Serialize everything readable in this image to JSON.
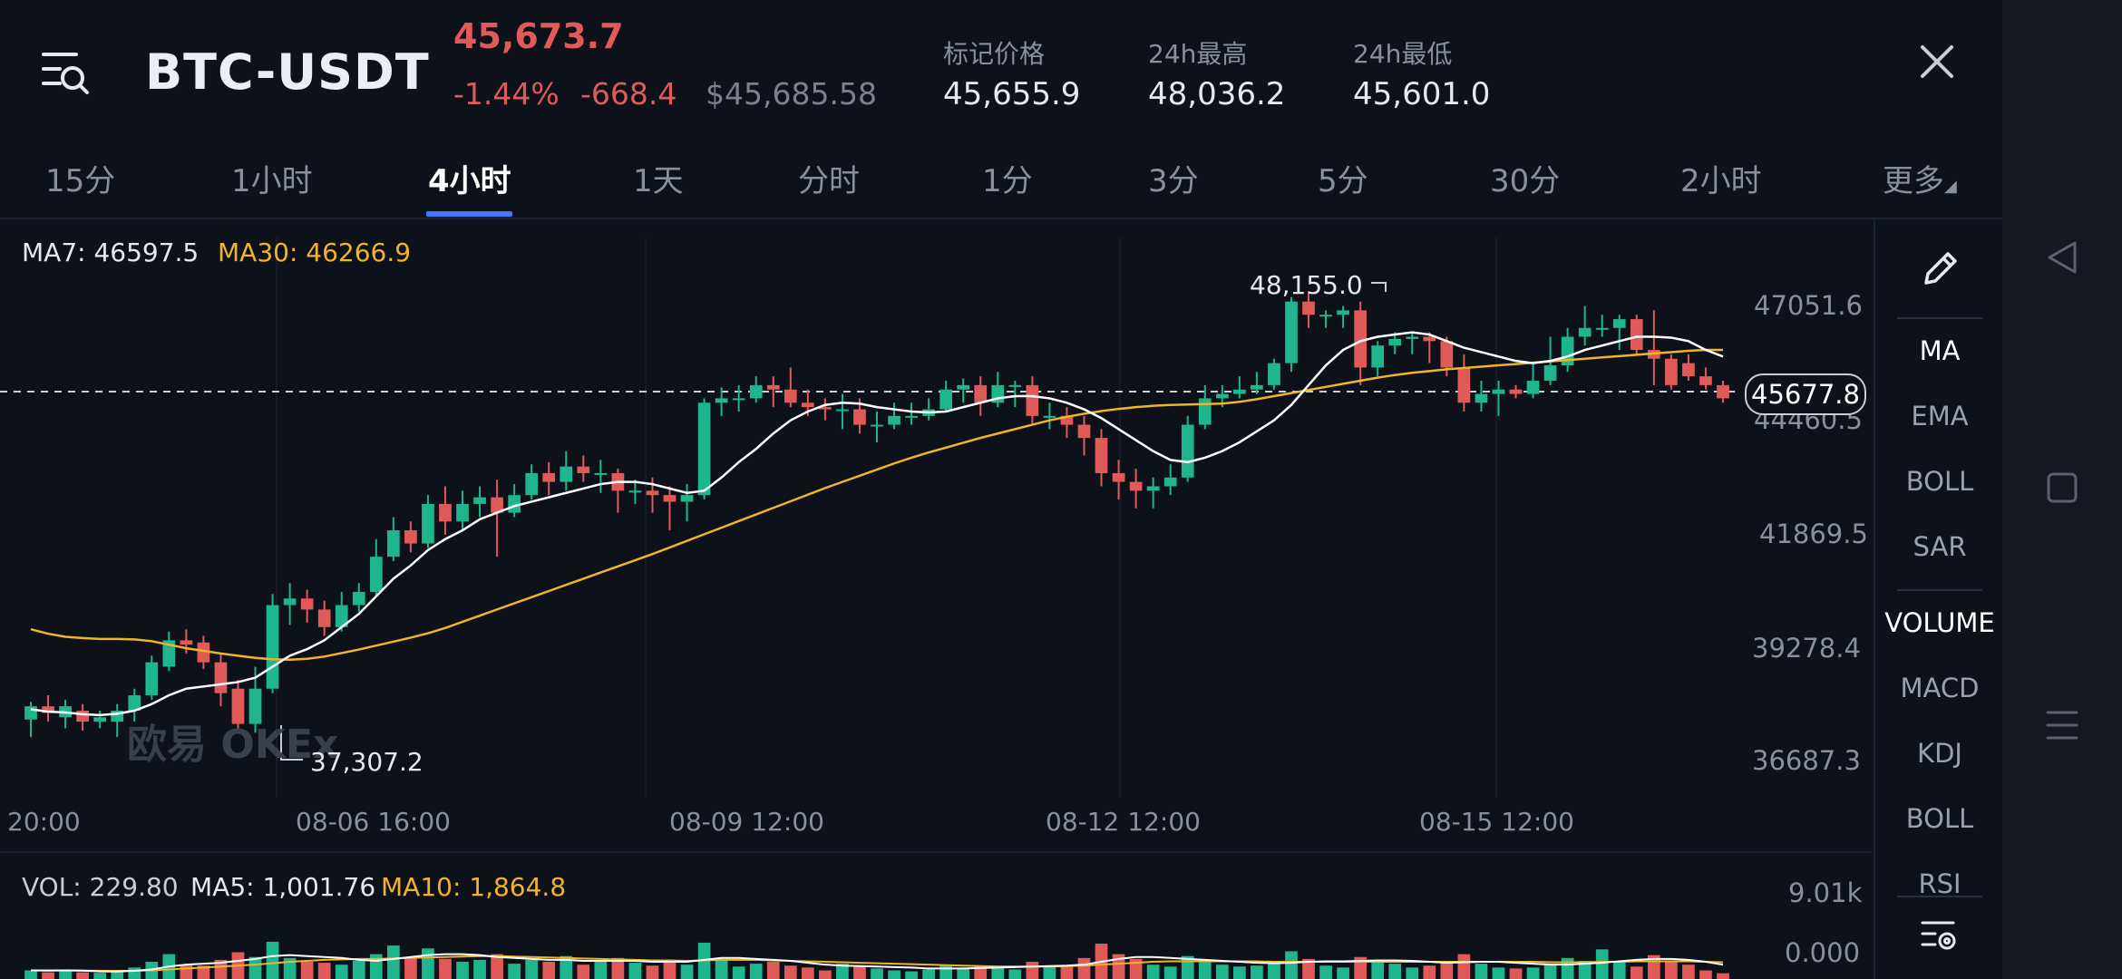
{
  "header": {
    "pair": "BTC-USDT",
    "last_price": "45,673.7",
    "change_pct": "-1.44%",
    "change_abs": "-668.4",
    "usd_price": "$45,685.58",
    "stats": [
      {
        "label": "标记价格",
        "value": "45,655.9"
      },
      {
        "label": "24h最高",
        "value": "48,036.2"
      },
      {
        "label": "24h最低",
        "value": "45,601.0"
      }
    ]
  },
  "tabs": [
    "15分",
    "1小时",
    "4小时",
    "1天",
    "分时",
    "1分",
    "3分",
    "5分",
    "30分",
    "2小时",
    "更多"
  ],
  "active_tab": "4小时",
  "legend": {
    "ma7_label": "MA7: 46597.5",
    "ma30_label": "MA30: 46266.9",
    "vol_label": "VOL: 229.80",
    "vol_ma5_label": "MA5: 1,001.76",
    "vol_ma10_label": "MA10: 1,864.8"
  },
  "annotations": {
    "high": "48,155.0",
    "low": "37,307.2",
    "current": "45677.8"
  },
  "watermark": "欧易 OKEx",
  "side_tools": [
    "MA",
    "EMA",
    "BOLL",
    "SAR",
    "VOLUME",
    "MACD",
    "KDJ",
    "BOLL",
    "RSI"
  ],
  "colors": {
    "up": "#1fb58f",
    "down": "#e05a5a",
    "ma7": "#ffffff",
    "ma30": "#f0b429",
    "accent": "#3d7bff"
  },
  "chart_data": {
    "type": "candlestick",
    "y_ticks": [
      "47051.6",
      "44460.5",
      "41869.5",
      "39278.4",
      "36687.3"
    ],
    "x_ticks": [
      "20:00",
      "08-06 16:00",
      "08-09 12:00",
      "08-12 12:00",
      "08-15 12:00"
    ],
    "vol_y_ticks": [
      "9.01k",
      "0.000"
    ],
    "candles": [
      [
        37600,
        37900,
        37200,
        38000
      ],
      [
        37900,
        37750,
        37550,
        38150
      ],
      [
        37650,
        37900,
        37400,
        38050
      ],
      [
        37800,
        37550,
        37350,
        37950
      ],
      [
        37550,
        37650,
        37400,
        37800
      ],
      [
        37550,
        37800,
        37200,
        37950
      ],
      [
        37800,
        38150,
        37550,
        38300
      ],
      [
        38150,
        38900,
        38050,
        39050
      ],
      [
        38800,
        39400,
        38700,
        39600
      ],
      [
        39400,
        39300,
        39100,
        39650
      ],
      [
        39350,
        38900,
        38750,
        39500
      ],
      [
        38900,
        38200,
        37900,
        39100
      ],
      [
        38300,
        37500,
        37300,
        38500
      ],
      [
        37500,
        38300,
        37300,
        38800
      ],
      [
        38300,
        40200,
        38200,
        40450
      ],
      [
        40200,
        40350,
        39750,
        40700
      ],
      [
        40350,
        40100,
        39800,
        40550
      ],
      [
        40100,
        39700,
        39500,
        40300
      ],
      [
        39700,
        40200,
        39600,
        40500
      ],
      [
        40200,
        40500,
        40050,
        40700
      ],
      [
        40500,
        41300,
        40400,
        41700
      ],
      [
        41300,
        41900,
        41200,
        42200
      ],
      [
        41900,
        41600,
        41400,
        42100
      ],
      [
        41600,
        42500,
        41500,
        42700
      ],
      [
        42500,
        42100,
        41800,
        42900
      ],
      [
        42100,
        42500,
        41900,
        42800
      ],
      [
        42500,
        42650,
        42200,
        42900
      ],
      [
        42650,
        42300,
        41300,
        43050
      ],
      [
        42300,
        42700,
        42200,
        42950
      ],
      [
        42700,
        43200,
        42600,
        43400
      ],
      [
        43200,
        43000,
        42700,
        43450
      ],
      [
        43000,
        43350,
        42800,
        43700
      ],
      [
        43350,
        43200,
        43000,
        43600
      ],
      [
        43200,
        43200,
        42750,
        43500
      ],
      [
        43200,
        42800,
        42300,
        43300
      ],
      [
        42800,
        42800,
        42500,
        43050
      ],
      [
        42800,
        42700,
        42300,
        43100
      ],
      [
        42700,
        42550,
        41900,
        42900
      ],
      [
        42550,
        42700,
        42100,
        42950
      ],
      [
        42700,
        44800,
        42600,
        44900
      ],
      [
        44800,
        44900,
        44500,
        45150
      ],
      [
        44900,
        44900,
        44600,
        45200
      ],
      [
        44900,
        45200,
        44800,
        45400
      ],
      [
        45200,
        45100,
        44700,
        45400
      ],
      [
        45100,
        44800,
        44700,
        45600
      ],
      [
        44800,
        44700,
        44500,
        45100
      ],
      [
        44700,
        44650,
        44400,
        44900
      ],
      [
        44650,
        44650,
        44200,
        45000
      ],
      [
        44650,
        44300,
        44100,
        44900
      ],
      [
        44300,
        44300,
        43900,
        44600
      ],
      [
        44300,
        44500,
        44200,
        44800
      ],
      [
        44500,
        44500,
        44300,
        44800
      ],
      [
        44500,
        44650,
        44400,
        44900
      ],
      [
        44650,
        45100,
        44600,
        45300
      ],
      [
        45100,
        45200,
        44800,
        45350
      ],
      [
        45200,
        44800,
        44500,
        45400
      ],
      [
        44800,
        45200,
        44700,
        45500
      ],
      [
        45200,
        45200,
        44700,
        45300
      ],
      [
        45200,
        44500,
        44300,
        45400
      ],
      [
        44500,
        44500,
        44200,
        44800
      ],
      [
        44500,
        44300,
        44000,
        44700
      ],
      [
        44300,
        44000,
        43600,
        44500
      ],
      [
        44000,
        43200,
        42900,
        44200
      ],
      [
        43200,
        43000,
        42600,
        43500
      ],
      [
        43000,
        42800,
        42400,
        43300
      ],
      [
        42800,
        42900,
        42400,
        43100
      ],
      [
        42900,
        43100,
        42700,
        43400
      ],
      [
        43100,
        44300,
        43000,
        44500
      ],
      [
        44300,
        44900,
        44200,
        45200
      ],
      [
        44900,
        45000,
        44700,
        45200
      ],
      [
        45000,
        45100,
        44900,
        45400
      ],
      [
        45100,
        45200,
        45000,
        45500
      ],
      [
        45200,
        45700,
        45100,
        45800
      ],
      [
        45700,
        47100,
        45500,
        47200
      ],
      [
        47100,
        46800,
        46500,
        47300
      ],
      [
        46800,
        46800,
        46500,
        46900
      ],
      [
        46800,
        46900,
        46500,
        47000
      ],
      [
        46900,
        45600,
        45200,
        47100
      ],
      [
        45600,
        46100,
        45400,
        46200
      ],
      [
        46100,
        46250,
        45900,
        46400
      ],
      [
        46250,
        46300,
        45900,
        46400
      ],
      [
        46300,
        46200,
        45700,
        46400
      ],
      [
        46200,
        45600,
        45400,
        46300
      ],
      [
        45600,
        44800,
        44600,
        45900
      ],
      [
        44800,
        45000,
        44600,
        45300
      ],
      [
        45000,
        45100,
        44500,
        45300
      ],
      [
        45100,
        45000,
        44900,
        45200
      ],
      [
        45000,
        45300,
        44900,
        45700
      ],
      [
        45300,
        45650,
        45200,
        46300
      ],
      [
        45650,
        46300,
        45500,
        46500
      ],
      [
        46300,
        46500,
        46100,
        47000
      ],
      [
        46500,
        46500,
        46300,
        46800
      ],
      [
        46500,
        46700,
        46000,
        46800
      ],
      [
        46700,
        46000,
        45900,
        46800
      ],
      [
        46000,
        45800,
        45200,
        46900
      ],
      [
        45800,
        45200,
        45100,
        45900
      ],
      [
        45700,
        45400,
        45300,
        45900
      ],
      [
        45400,
        45200,
        45100,
        45600
      ],
      [
        45200,
        44900,
        44800,
        45300
      ]
    ],
    "ma7": [
      37830,
      37780,
      37760,
      37720,
      37700,
      37730,
      37800,
      37950,
      38150,
      38300,
      38350,
      38400,
      38450,
      38550,
      38800,
      39050,
      39200,
      39400,
      39700,
      40000,
      40400,
      40800,
      41100,
      41450,
      41700,
      41900,
      42150,
      42300,
      42450,
      42550,
      42650,
      42750,
      42850,
      42950,
      43000,
      43000,
      42950,
      42850,
      42750,
      42800,
      43100,
      43450,
      43750,
      44100,
      44400,
      44600,
      44750,
      44800,
      44780,
      44700,
      44650,
      44600,
      44580,
      44600,
      44700,
      44800,
      44900,
      44950,
      44950,
      44900,
      44800,
      44650,
      44450,
      44200,
      43950,
      43700,
      43500,
      43450,
      43550,
      43700,
      43900,
      44150,
      44400,
      44750,
      45200,
      45650,
      46000,
      46200,
      46300,
      46350,
      46400,
      46350,
      46200,
      46050,
      45950,
      45850,
      45750,
      45700,
      45750,
      45850,
      46000,
      46100,
      46200,
      46300,
      46300,
      46280,
      46200,
      46000,
      45850
    ],
    "ma30": [
      39650,
      39550,
      39480,
      39450,
      39430,
      39430,
      39420,
      39380,
      39300,
      39220,
      39160,
      39100,
      39050,
      39000,
      38970,
      38960,
      38980,
      39030,
      39110,
      39190,
      39280,
      39370,
      39460,
      39560,
      39680,
      39820,
      39960,
      40100,
      40240,
      40380,
      40520,
      40660,
      40800,
      40940,
      41080,
      41220,
      41360,
      41510,
      41660,
      41810,
      41960,
      42110,
      42260,
      42410,
      42560,
      42710,
      42860,
      43000,
      43140,
      43280,
      43420,
      43550,
      43670,
      43780,
      43890,
      44000,
      44100,
      44200,
      44300,
      44400,
      44480,
      44550,
      44610,
      44660,
      44700,
      44730,
      44750,
      44760,
      44770,
      44780,
      44820,
      44880,
      44950,
      45020,
      45090,
      45160,
      45230,
      45300,
      45370,
      45430,
      45480,
      45520,
      45560,
      45590,
      45620,
      45650,
      45680,
      45710,
      45740,
      45770,
      45800,
      45830,
      45860,
      45890,
      45920,
      45950,
      45980,
      46000,
      46000
    ],
    "volume": [
      900,
      700,
      800,
      700,
      650,
      800,
      1200,
      1800,
      2600,
      1500,
      1400,
      2000,
      2800,
      2300,
      3900,
      2200,
      1800,
      1700,
      1500,
      1900,
      2600,
      3500,
      2200,
      3200,
      2100,
      1800,
      2000,
      2600,
      1600,
      2000,
      1800,
      2400,
      1500,
      1800,
      2200,
      1700,
      1400,
      1900,
      1500,
      3800,
      2100,
      1300,
      1600,
      1800,
      1400,
      1200,
      900,
      1600,
      1400,
      1100,
      900,
      800,
      1000,
      1500,
      1100,
      1400,
      1200,
      1000,
      1800,
      1300,
      1400,
      2200,
      3700,
      2600,
      2100,
      1500,
      1300,
      2400,
      1900,
      1500,
      1300,
      1400,
      1800,
      2900,
      2100,
      1400,
      1200,
      2300,
      1900,
      1600,
      1200,
      1400,
      1800,
      2600,
      1600,
      1200,
      1100,
      1200,
      1500,
      2200,
      1900,
      3100,
      1800,
      1300,
      2500,
      1900,
      1500,
      900,
      600
    ],
    "vol_ma5": [
      900,
      880,
      900,
      880,
      800,
      780,
      850,
      1000,
      1300,
      1500,
      1600,
      1700,
      1900,
      2100,
      2400,
      2500,
      2400,
      2300,
      2200,
      2000,
      1900,
      2100,
      2300,
      2500,
      2600,
      2600,
      2500,
      2300,
      2200,
      2100,
      2000,
      2000,
      1900,
      1900,
      1900,
      1900,
      1800,
      1800,
      1800,
      2000,
      2200,
      2200,
      2100,
      2000,
      1900,
      1700,
      1500,
      1400,
      1350,
      1300,
      1250,
      1200,
      1100,
      1100,
      1100,
      1150,
      1200,
      1250,
      1300,
      1350,
      1400,
      1500,
      1800,
      2100,
      2300,
      2300,
      2200,
      2100,
      2000,
      1900,
      1800,
      1700,
      1650,
      1700,
      1800,
      1850,
      1850,
      1900,
      1950,
      1950,
      1900,
      1800,
      1700,
      1750,
      1800,
      1800,
      1700,
      1600,
      1500,
      1500,
      1600,
      1700,
      1850,
      2000,
      2100,
      2100,
      2000,
      1800,
      1500
    ],
    "vol_ma10": [
      900,
      900,
      900,
      880,
      860,
      850,
      860,
      900,
      1000,
      1100,
      1200,
      1300,
      1400,
      1500,
      1650,
      1800,
      1900,
      2000,
      2050,
      2100,
      2100,
      2150,
      2200,
      2250,
      2300,
      2350,
      2400,
      2400,
      2350,
      2300,
      2250,
      2200,
      2150,
      2100,
      2050,
      2000,
      1950,
      1950,
      1900,
      1950,
      2000,
      2000,
      2000,
      1950,
      1900,
      1850,
      1800,
      1750,
      1700,
      1650,
      1600,
      1550,
      1500,
      1450,
      1400,
      1350,
      1300,
      1300,
      1300,
      1300,
      1350,
      1400,
      1500,
      1600,
      1700,
      1800,
      1850,
      1850,
      1850,
      1850,
      1850,
      1850,
      1800,
      1800,
      1800,
      1800,
      1800,
      1800,
      1800,
      1800,
      1800,
      1800,
      1800,
      1800,
      1800,
      1800,
      1800,
      1800,
      1750,
      1750,
      1750,
      1800,
      1800,
      1850,
      1850,
      1850,
      1850,
      1800,
      1750
    ]
  }
}
